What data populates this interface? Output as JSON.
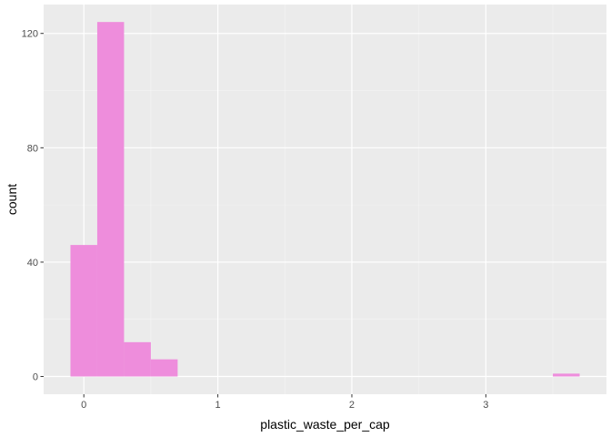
{
  "chart_data": {
    "type": "bar",
    "title": "",
    "xlabel": "plastic_waste_per_cap",
    "ylabel": "count",
    "xlim": [
      -0.3,
      3.9
    ],
    "ylim": [
      -6.2,
      130.1
    ],
    "x_major_ticks": [
      0,
      1,
      2,
      3
    ],
    "x_minor_ticks": [
      0.5,
      1.5,
      2.5,
      3.5
    ],
    "y_major_ticks": [
      0,
      40,
      80,
      120
    ],
    "y_minor_ticks": [
      20,
      60,
      100
    ],
    "bins": [
      {
        "x0": -0.1,
        "x1": 0.1,
        "count": 46
      },
      {
        "x0": 0.1,
        "x1": 0.3,
        "count": 124
      },
      {
        "x0": 0.3,
        "x1": 0.5,
        "count": 12
      },
      {
        "x0": 0.5,
        "x1": 0.7,
        "count": 6
      },
      {
        "x0": 3.5,
        "x1": 3.7,
        "count": 1
      }
    ],
    "colors": {
      "panel": "#ebebeb",
      "grid_major": "#ffffff",
      "grid_minor": "#f5f5f5",
      "fill": "#ee8ddc",
      "tick": "#333333"
    }
  }
}
